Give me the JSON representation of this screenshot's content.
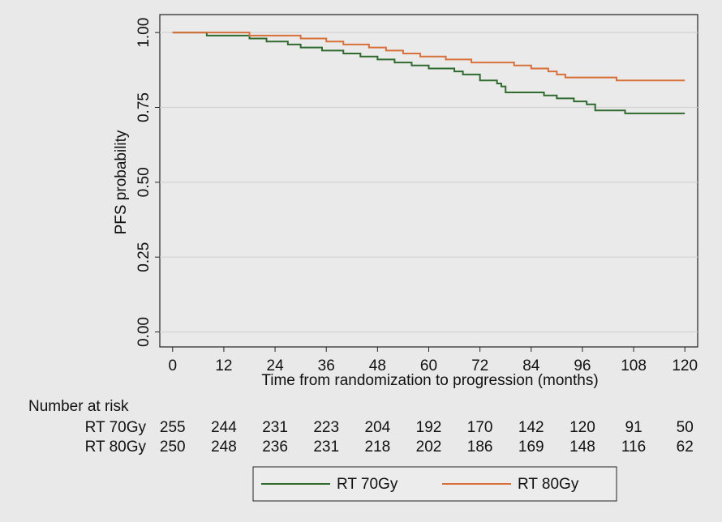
{
  "chart_data": {
    "type": "km",
    "xlabel": "Time from randomization to  progression (months)",
    "ylabel": "PFS probability",
    "xlim": [
      -3,
      123
    ],
    "ylim": [
      -0.05,
      1.06
    ],
    "xticks": [
      0,
      12,
      24,
      36,
      48,
      60,
      72,
      84,
      96,
      108,
      120
    ],
    "yticks": [
      {
        "value": 0,
        "label": "0.00"
      },
      {
        "value": 0.25,
        "label": "0.25"
      },
      {
        "value": 0.5,
        "label": "0.50"
      },
      {
        "value": 0.75,
        "label": "0.75"
      },
      {
        "value": 1,
        "label": "1.00"
      }
    ],
    "grid": true,
    "series": [
      {
        "name": "RT 70Gy",
        "color": "#2f6a2f",
        "x": [
          0,
          8,
          18,
          22,
          27,
          30,
          35,
          40,
          44,
          48,
          52,
          56,
          60,
          66,
          68,
          72,
          76,
          77,
          78,
          87,
          90,
          94,
          97,
          99,
          106,
          120
        ],
        "values": [
          1.0,
          0.99,
          0.98,
          0.97,
          0.96,
          0.95,
          0.94,
          0.93,
          0.92,
          0.91,
          0.9,
          0.89,
          0.88,
          0.87,
          0.86,
          0.84,
          0.83,
          0.82,
          0.8,
          0.79,
          0.78,
          0.77,
          0.76,
          0.74,
          0.73,
          0.73
        ]
      },
      {
        "name": "RT 80Gy",
        "color": "#d8703a",
        "x": [
          0,
          18,
          30,
          36,
          40,
          46,
          50,
          54,
          58,
          64,
          70,
          80,
          84,
          88,
          90,
          92,
          104,
          120
        ],
        "values": [
          1.0,
          0.99,
          0.98,
          0.97,
          0.96,
          0.95,
          0.94,
          0.93,
          0.92,
          0.91,
          0.9,
          0.89,
          0.88,
          0.87,
          0.86,
          0.85,
          0.84,
          0.84
        ]
      }
    ],
    "risk_table": {
      "title": "Number at risk",
      "rows": [
        {
          "name": "RT 70Gy",
          "values": [
            255,
            244,
            231,
            223,
            204,
            192,
            170,
            142,
            120,
            91,
            50
          ]
        },
        {
          "name": "RT 80Gy",
          "values": [
            250,
            248,
            236,
            231,
            218,
            202,
            186,
            169,
            148,
            116,
            62
          ]
        }
      ]
    }
  }
}
